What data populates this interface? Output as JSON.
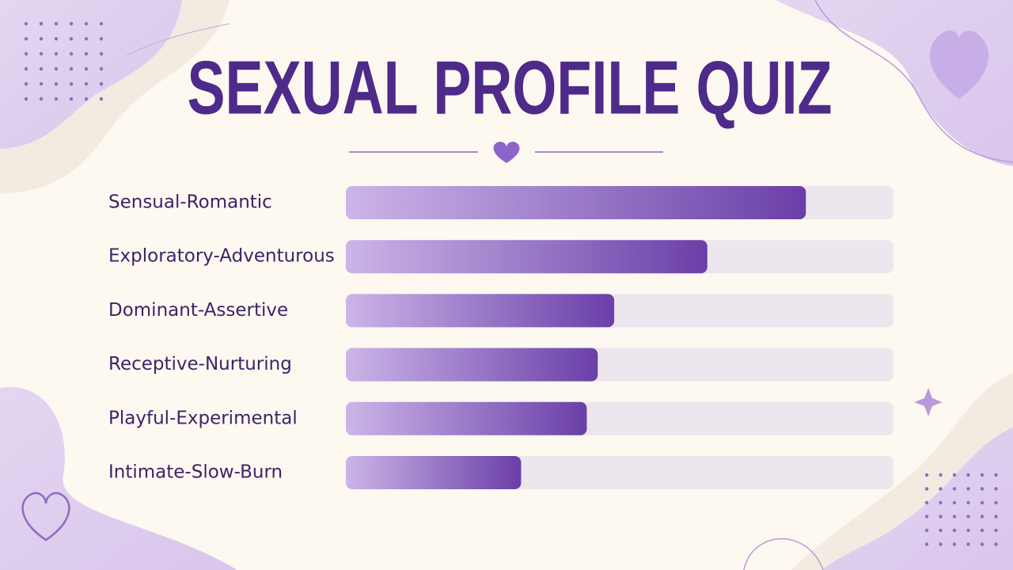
{
  "chart_data": {
    "type": "bar",
    "orientation": "horizontal",
    "title": "SEXUAL PROFILE QUIZ",
    "categories": [
      "Sensual-Romantic",
      "Exploratory-Adventurous",
      "Dominant-Assertive",
      "Receptive-Nurturing",
      "Playful-Experimental",
      "Intimate-Slow-Burn"
    ],
    "values": [
      84,
      66,
      49,
      46,
      44,
      32
    ],
    "color": "#6a3fa8",
    "xlim": [
      0,
      100
    ]
  }
}
